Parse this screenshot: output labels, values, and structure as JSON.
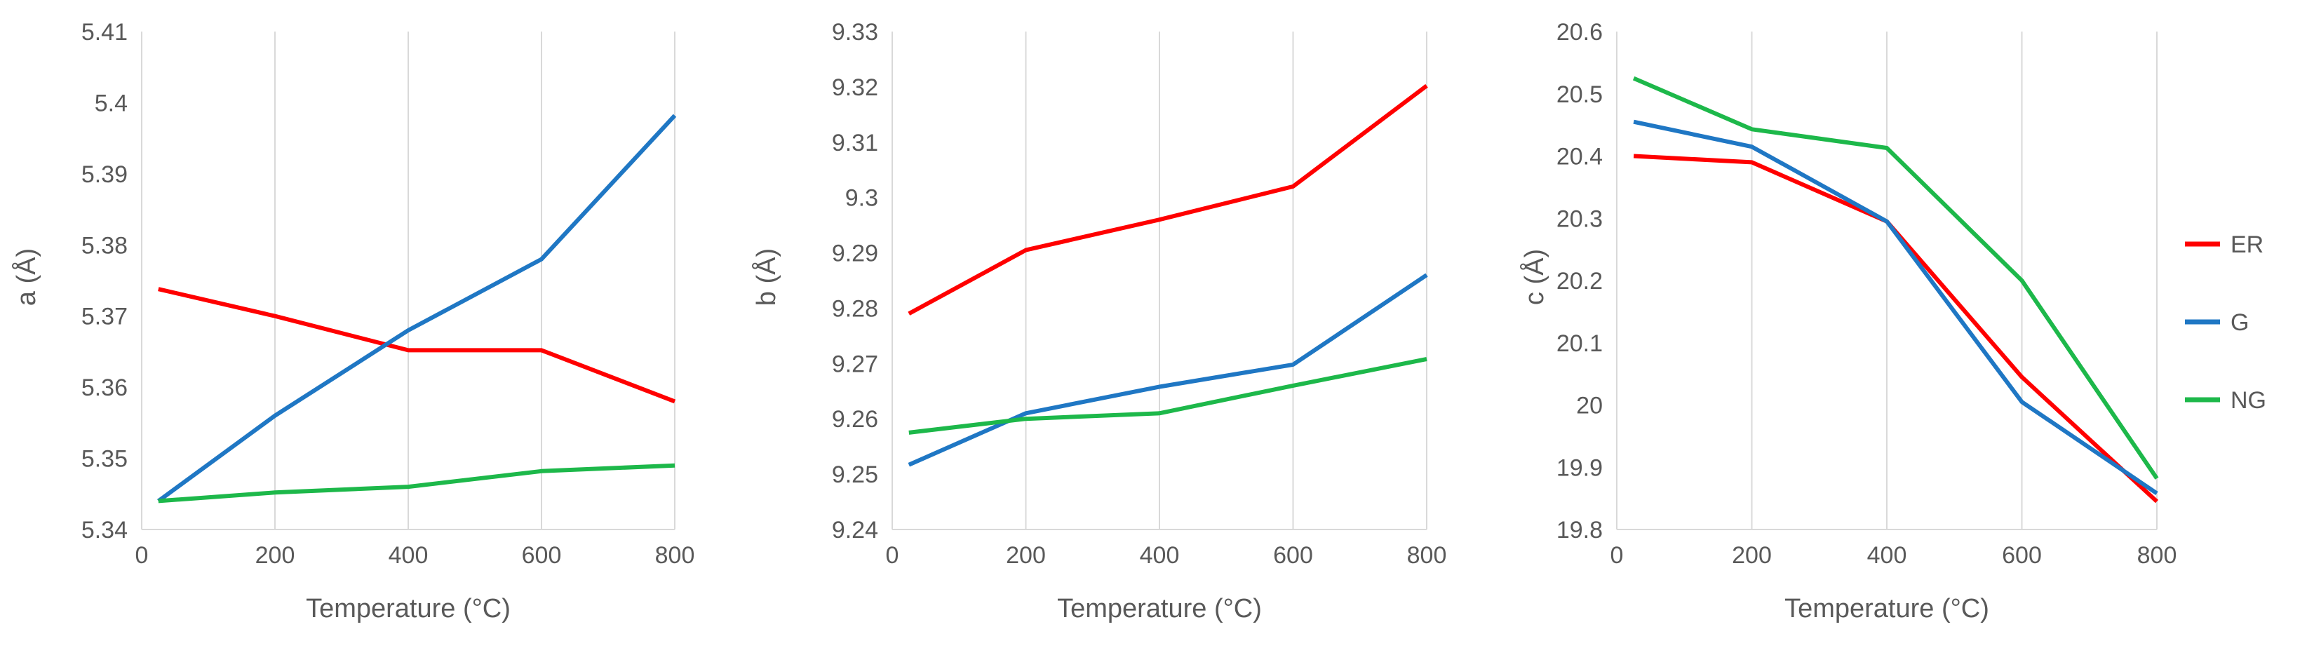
{
  "chart_data": [
    {
      "type": "line",
      "ylabel": "a (Å)",
      "xlabel": "Temperature (°C)",
      "xlim": [
        0,
        800
      ],
      "ylim": [
        5.34,
        5.41
      ],
      "xticks": [
        0,
        200,
        400,
        600,
        800
      ],
      "xtick_labels": [
        "0",
        "200",
        "400",
        "600",
        "800"
      ],
      "yticks": [
        5.34,
        5.35,
        5.36,
        5.37,
        5.38,
        5.39,
        5.4,
        5.41
      ],
      "ytick_labels": [
        "5.34",
        "5.35",
        "5.36",
        "5.37",
        "5.38",
        "5.39",
        "5.4",
        "5.41"
      ],
      "grid": "vertical",
      "series": [
        {
          "name": "ER",
          "x": [
            25,
            200,
            400,
            600,
            800
          ],
          "values": [
            5.3738,
            5.37,
            5.3652,
            5.3652,
            5.358
          ]
        },
        {
          "name": "G",
          "x": [
            25,
            200,
            400,
            600,
            800
          ],
          "values": [
            5.344,
            5.356,
            5.368,
            5.378,
            5.3982
          ]
        },
        {
          "name": "NG",
          "x": [
            25,
            200,
            400,
            600,
            800
          ],
          "values": [
            5.344,
            5.3452,
            5.346,
            5.3482,
            5.349
          ]
        }
      ]
    },
    {
      "type": "line",
      "ylabel": "b (Å)",
      "xlabel": "Temperature (°C)",
      "xlim": [
        0,
        800
      ],
      "ylim": [
        9.24,
        9.33
      ],
      "xticks": [
        0,
        200,
        400,
        600,
        800
      ],
      "xtick_labels": [
        "0",
        "200",
        "400",
        "600",
        "800"
      ],
      "yticks": [
        9.24,
        9.25,
        9.26,
        9.27,
        9.28,
        9.29,
        9.3,
        9.31,
        9.32,
        9.33
      ],
      "ytick_labels": [
        "9.24",
        "9.25",
        "9.26",
        "9.27",
        "9.28",
        "9.29",
        "9.3",
        "9.31",
        "9.32",
        "9.33"
      ],
      "grid": "vertical",
      "series": [
        {
          "name": "ER",
          "x": [
            25,
            200,
            400,
            600,
            800
          ],
          "values": [
            9.279,
            9.2905,
            9.296,
            9.302,
            9.3202
          ]
        },
        {
          "name": "G",
          "x": [
            25,
            200,
            400,
            600,
            800
          ],
          "values": [
            9.2517,
            9.261,
            9.2658,
            9.2698,
            9.286
          ]
        },
        {
          "name": "NG",
          "x": [
            25,
            200,
            400,
            600,
            800
          ],
          "values": [
            9.2575,
            9.26,
            9.261,
            9.266,
            9.2708
          ]
        }
      ]
    },
    {
      "type": "line",
      "ylabel": "c (Å)",
      "xlabel": "Temperature (°C)",
      "xlim": [
        0,
        800
      ],
      "ylim": [
        19.8,
        20.6
      ],
      "xticks": [
        0,
        200,
        400,
        600,
        800
      ],
      "xtick_labels": [
        "0",
        "200",
        "400",
        "600",
        "800"
      ],
      "yticks": [
        19.8,
        19.9,
        20.0,
        20.1,
        20.2,
        20.3,
        20.4,
        20.5,
        20.6
      ],
      "ytick_labels": [
        "19.8",
        "19.9",
        "20",
        "20.1",
        "20.2",
        "20.3",
        "20.4",
        "20.5",
        "20.6"
      ],
      "grid": "vertical",
      "legend": "right",
      "series": [
        {
          "name": "ER",
          "x": [
            25,
            200,
            400,
            600,
            800
          ],
          "values": [
            20.4,
            20.39,
            20.295,
            20.045,
            19.845
          ]
        },
        {
          "name": "G",
          "x": [
            25,
            200,
            400,
            600,
            800
          ],
          "values": [
            20.455,
            20.415,
            20.295,
            20.005,
            19.858
          ]
        },
        {
          "name": "NG",
          "x": [
            25,
            200,
            400,
            600,
            800
          ],
          "values": [
            20.525,
            20.443,
            20.413,
            20.2,
            19.882
          ]
        }
      ]
    }
  ],
  "series_colors": {
    "ER": "#ff0000",
    "G": "#1f77c4",
    "NG": "#1db84a"
  },
  "gridline_color": "#d9d9d9",
  "legend": [
    {
      "name": "ER",
      "label": "ER"
    },
    {
      "name": "G",
      "label": "G"
    },
    {
      "name": "NG",
      "label": "NG"
    }
  ]
}
